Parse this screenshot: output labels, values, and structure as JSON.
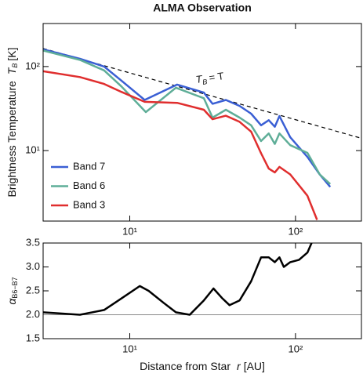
{
  "chart_data": [
    {
      "type": "line",
      "title": "ALMA Observation",
      "ylabel": "Brightness Temperature",
      "ylabel_symbol": "T",
      "ylabel_sub": "B",
      "ylabel_unit": "[K]",
      "xlog": true,
      "ylog": true,
      "xlim": [
        3,
        250
      ],
      "ylim": [
        1.45,
        325
      ],
      "xticks": [
        {
          "value": 10,
          "label": "10¹"
        },
        {
          "value": 100,
          "label": "10²"
        }
      ],
      "yticks": [
        {
          "value": 10,
          "label": "10¹"
        },
        {
          "value": 100,
          "label": "10²"
        }
      ],
      "legend": "lower left",
      "reference": {
        "x": [
          3,
          250
        ],
        "values": [
          164,
          14
        ],
        "color": "#000000",
        "dash": true,
        "label_symbol": "T",
        "label_sub": "B",
        "label_rest": "= T"
      },
      "series": [
        {
          "name": "Band 7",
          "color": "#3a5fd4",
          "x": [
            3,
            5,
            7,
            8.9,
            12.3,
            19.3,
            28,
            31.6,
            38,
            46,
            54,
            62,
            69,
            75,
            80,
            93,
            118,
            140,
            162
          ],
          "values": [
            160,
            124,
            100,
            68,
            40,
            61,
            49,
            36,
            40,
            34,
            27.5,
            20,
            23,
            19.2,
            25.7,
            14.4,
            8.4,
            5.2,
            3.7
          ]
        },
        {
          "name": "Band 6",
          "color": "#5fae98",
          "x": [
            3,
            5,
            7,
            8.9,
            12.5,
            19,
            28,
            31.6,
            38,
            46,
            54,
            62,
            69,
            75,
            80,
            93,
            118,
            140,
            162
          ],
          "values": [
            155,
            120,
            90,
            58,
            28.7,
            56,
            42,
            24.7,
            30.6,
            24.7,
            20,
            13,
            16,
            12,
            16,
            11.6,
            9.4,
            5.2,
            4
          ]
        },
        {
          "name": "Band 3",
          "color": "#e02e2e",
          "x": [
            3,
            5,
            7,
            8.9,
            12.3,
            19.3,
            28,
            31.6,
            38,
            46,
            54,
            62,
            69,
            75,
            80,
            93,
            118,
            135
          ],
          "values": [
            88,
            75,
            62,
            50,
            38,
            37,
            30.6,
            23.6,
            26,
            22,
            16.8,
            9.3,
            6.1,
            5.5,
            6.4,
            5.2,
            2.9,
            1.5
          ]
        }
      ]
    },
    {
      "type": "line",
      "ylabel_symbol": "α",
      "ylabel_sub": "B6−B7",
      "xlabel": "Distance from Star",
      "xlabel_symbol": "r",
      "xlabel_unit": "[AU]",
      "xlog": true,
      "ylog": false,
      "xlim": [
        3,
        250
      ],
      "ylim": [
        1.5,
        3.5
      ],
      "xticks": [
        {
          "value": 10,
          "label": "10¹"
        },
        {
          "value": 100,
          "label": "10²"
        }
      ],
      "yticks": [
        1.5,
        {
          "value": 2,
          "label": "2.0"
        },
        2.5,
        {
          "value": 3,
          "label": "3.0"
        },
        3.5
      ],
      "hline": 2,
      "hline_color": "#888888",
      "series": [
        {
          "color": "#000000",
          "x": [
            3,
            5,
            7,
            9,
            11.5,
            13,
            16,
            19,
            23,
            28,
            32,
            36,
            40,
            46,
            54,
            62,
            69,
            75,
            80,
            85,
            93,
            105,
            118,
            125
          ],
          "values": [
            2.05,
            2.0,
            2.1,
            2.35,
            2.6,
            2.5,
            2.25,
            2.05,
            2.0,
            2.3,
            2.55,
            2.35,
            2.2,
            2.3,
            2.7,
            3.2,
            3.2,
            3.1,
            3.2,
            3.0,
            3.1,
            3.15,
            3.3,
            3.5
          ]
        }
      ]
    }
  ]
}
